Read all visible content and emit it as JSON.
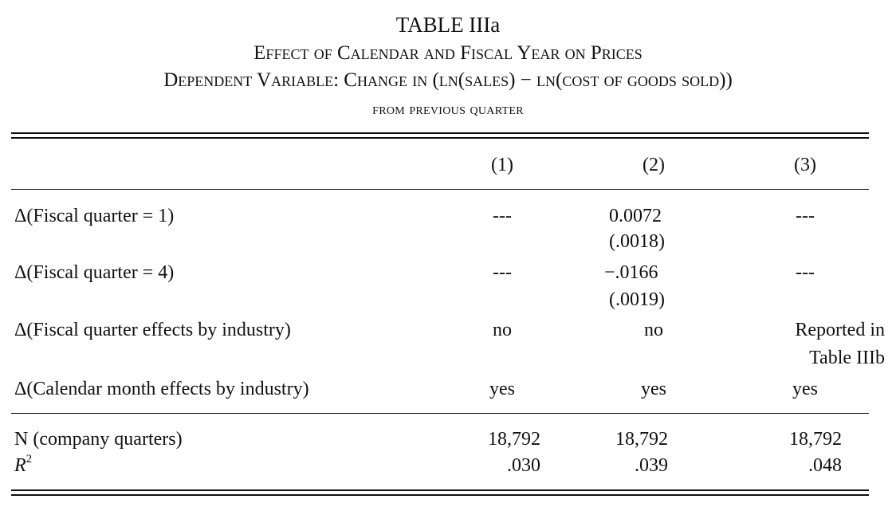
{
  "table": {
    "title": "TABLE IIIa",
    "subtitle": "Effect of Calendar and Fiscal Year on Prices",
    "dependent_variable": "Dependent Variable: Change in (ln(sales) − ln(cost of goods sold))",
    "dependent_variable_cont": "from previous quarter",
    "columns": [
      "(1)",
      "(2)",
      "(3)"
    ],
    "rows": {
      "fq1": {
        "label": "Δ(Fiscal quarter = 1)",
        "c1": "---",
        "c2": "0.0072",
        "c2_se": "(.0018)",
        "c3": "---"
      },
      "fq4": {
        "label": "Δ(Fiscal quarter = 4)",
        "c1": "---",
        "c2": "−.0166",
        "c2_se": "(.0019)",
        "c3": "---"
      },
      "fqe": {
        "label": "Δ(Fiscal quarter effects by industry)",
        "c1": "no",
        "c2": "no",
        "c3_line1": "Reported in",
        "c3_line2": "Table IIIb"
      },
      "cme": {
        "label": "Δ(Calendar month effects by industry)",
        "c1": "yes",
        "c2": "yes",
        "c3": "yes"
      }
    },
    "stats": {
      "n": {
        "label": "N (company quarters)",
        "c1": "18,792",
        "c2": "18,792",
        "c3": "18,792"
      },
      "r2": {
        "label": "R",
        "label_sup": "2",
        "c1": ".030",
        "c2": ".039",
        "c3": ".048"
      }
    }
  }
}
